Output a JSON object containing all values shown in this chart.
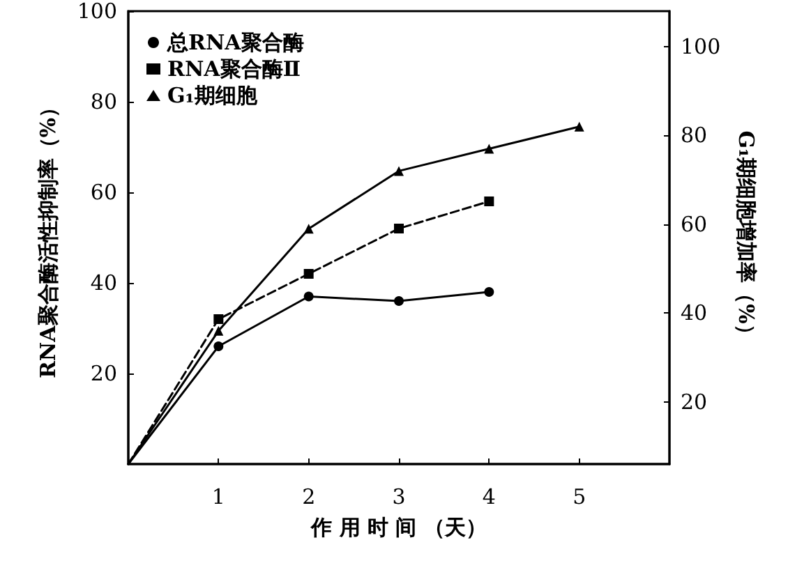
{
  "chart_data": {
    "type": "line",
    "xlabel": "作 用 时 间 （天）",
    "ylabel": "RNA聚合酶活性抑制率（%）",
    "y2label": "G₁期细胞增加率（%）",
    "xlim": [
      0,
      6
    ],
    "xticks": [
      1,
      2,
      3,
      4,
      5
    ],
    "ylim": [
      0,
      100
    ],
    "yticks": [
      20,
      40,
      60,
      80,
      100
    ],
    "y2lim": [
      6,
      108
    ],
    "y2ticks": [
      20,
      40,
      60,
      80,
      100
    ],
    "legend": "top left",
    "grid": false,
    "series": [
      {
        "name": "总RNA聚合酶",
        "color": "#000000",
        "marker": "circle",
        "line_style": "solid",
        "x": [
          0,
          1,
          2,
          3,
          4
        ],
        "values": [
          0,
          26,
          37,
          36,
          38
        ]
      },
      {
        "name": "RNA聚合酶Ⅱ",
        "color": "#000000",
        "marker": "square",
        "line_style": "dashed",
        "x": [
          0,
          1,
          2,
          3,
          4
        ],
        "values": [
          0,
          32,
          42,
          52,
          58
        ]
      },
      {
        "name": "G₁期细胞",
        "color": "#000000",
        "marker": "triangle",
        "line_style": "solid",
        "axis": "y2",
        "x": [
          0,
          1,
          2,
          3,
          4,
          5
        ],
        "values": [
          6,
          36,
          59,
          72,
          77,
          82
        ]
      }
    ]
  }
}
